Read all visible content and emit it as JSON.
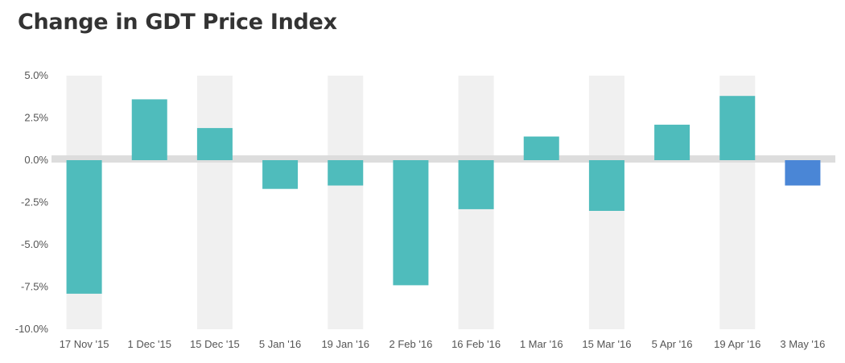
{
  "chart_data": {
    "type": "bar",
    "title": "Change in GDT Price Index",
    "categories": [
      "17 Nov '15",
      "1 Dec '15",
      "15 Dec '15",
      "5 Jan '16",
      "19 Jan '16",
      "2 Feb '16",
      "16 Feb '16",
      "1 Mar '16",
      "15 Mar '16",
      "5 Apr '16",
      "19 Apr '16",
      "3 May '16"
    ],
    "values": [
      -7.9,
      3.6,
      1.9,
      -1.7,
      -1.5,
      -7.4,
      -2.9,
      1.4,
      -3.0,
      2.1,
      3.8,
      -1.5
    ],
    "ylim": [
      -10,
      5
    ],
    "yticks": [
      5,
      2.5,
      0,
      -2.5,
      -5,
      -7.5,
      -10
    ],
    "ytick_labels": [
      "5.0%",
      "2.5%",
      "0.0%",
      "-2.5%",
      "-5.0%",
      "-7.5%",
      "-10.0%"
    ],
    "xlabel": "",
    "ylabel": "",
    "colors": {
      "bar": "#4fbcbc",
      "highlight_bar": "#4a86d6",
      "band": "#f0f0f0",
      "zero_line": "#dddddd"
    },
    "highlight_index": 11,
    "grid": false,
    "legend": "none"
  }
}
